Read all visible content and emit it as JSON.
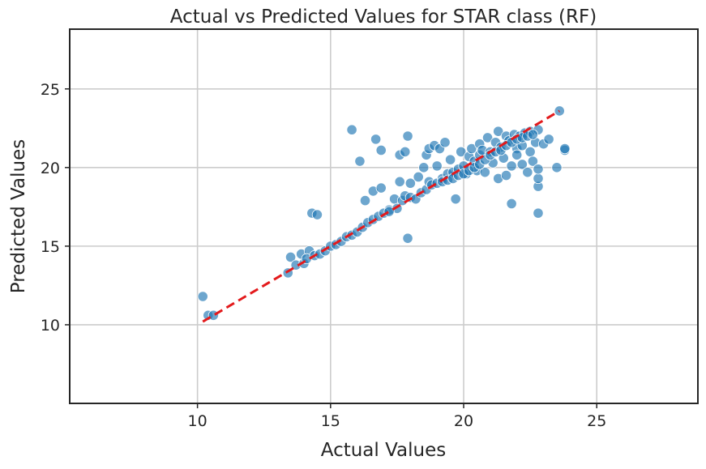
{
  "chart_data": {
    "type": "scatter",
    "title": "Actual vs Predicted Values for STAR class (RF)",
    "xlabel": "Actual Values",
    "ylabel": "Predicted Values",
    "xlim": [
      5.2,
      28.8
    ],
    "ylim": [
      5.0,
      28.8
    ],
    "x_ticks": [
      10,
      15,
      20,
      25
    ],
    "y_ticks": [
      10,
      15,
      20,
      25
    ],
    "x_tick_labels": [
      "10",
      "15",
      "20",
      "25"
    ],
    "y_tick_labels": [
      "10",
      "15",
      "20",
      "25"
    ],
    "grid": true,
    "legend": "none",
    "colors": {
      "points": "#1f77b4",
      "reference_line": "#e31a1c",
      "grid": "#cccccc",
      "frame": "#262626"
    },
    "reference_line": {
      "style": "dashed",
      "x": [
        10.2,
        23.6
      ],
      "y": [
        10.2,
        23.6
      ]
    },
    "series": [
      {
        "points": [
          [
            10.2,
            11.8
          ],
          [
            10.4,
            10.6
          ],
          [
            10.6,
            10.6
          ],
          [
            13.4,
            13.3
          ],
          [
            13.5,
            14.3
          ],
          [
            13.7,
            13.8
          ],
          [
            13.9,
            14.5
          ],
          [
            14.0,
            13.9
          ],
          [
            14.2,
            14.7
          ],
          [
            14.3,
            17.1
          ],
          [
            14.5,
            17.0
          ],
          [
            14.1,
            14.2
          ],
          [
            14.4,
            14.4
          ],
          [
            14.6,
            14.5
          ],
          [
            14.8,
            14.7
          ],
          [
            15.0,
            15.0
          ],
          [
            15.2,
            15.1
          ],
          [
            15.4,
            15.3
          ],
          [
            15.6,
            15.6
          ],
          [
            15.8,
            15.7
          ],
          [
            16.0,
            15.9
          ],
          [
            15.8,
            22.4
          ],
          [
            16.1,
            20.4
          ],
          [
            16.3,
            17.9
          ],
          [
            16.6,
            18.5
          ],
          [
            16.7,
            21.8
          ],
          [
            16.9,
            18.7
          ],
          [
            16.9,
            21.1
          ],
          [
            17.2,
            17.3
          ],
          [
            17.4,
            18.0
          ],
          [
            17.6,
            19.1
          ],
          [
            17.6,
            20.8
          ],
          [
            17.9,
            22.0
          ],
          [
            17.8,
            21.0
          ],
          [
            17.9,
            15.5
          ],
          [
            17.5,
            17.4
          ],
          [
            17.7,
            17.9
          ],
          [
            17.8,
            18.2
          ],
          [
            16.2,
            16.2
          ],
          [
            16.4,
            16.5
          ],
          [
            16.6,
            16.7
          ],
          [
            16.8,
            16.9
          ],
          [
            17.0,
            17.1
          ],
          [
            17.2,
            17.2
          ],
          [
            18.0,
            18.1
          ],
          [
            18.0,
            19.0
          ],
          [
            18.2,
            18.0
          ],
          [
            18.3,
            19.4
          ],
          [
            18.4,
            18.4
          ],
          [
            18.5,
            20.0
          ],
          [
            18.6,
            18.6
          ],
          [
            18.6,
            20.8
          ],
          [
            18.7,
            19.1
          ],
          [
            18.7,
            21.2
          ],
          [
            18.8,
            18.9
          ],
          [
            18.9,
            21.4
          ],
          [
            19.0,
            19.0
          ],
          [
            19.0,
            20.1
          ],
          [
            19.1,
            21.2
          ],
          [
            19.2,
            19.3
          ],
          [
            19.3,
            21.6
          ],
          [
            19.4,
            19.6
          ],
          [
            19.5,
            20.5
          ],
          [
            19.6,
            19.7
          ],
          [
            19.7,
            18.0
          ],
          [
            19.8,
            19.9
          ],
          [
            19.9,
            21.0
          ],
          [
            20.0,
            20.1
          ],
          [
            20.1,
            19.6
          ],
          [
            20.2,
            20.7
          ],
          [
            20.3,
            21.2
          ],
          [
            20.4,
            20.4
          ],
          [
            20.5,
            19.8
          ],
          [
            20.6,
            21.5
          ],
          [
            20.6,
            20.8
          ],
          [
            20.7,
            21.1
          ],
          [
            20.8,
            19.7
          ],
          [
            20.9,
            21.9
          ],
          [
            21.0,
            21.0
          ],
          [
            21.1,
            20.3
          ],
          [
            21.2,
            21.6
          ],
          [
            21.3,
            19.3
          ],
          [
            21.3,
            22.3
          ],
          [
            21.4,
            21.3
          ],
          [
            21.5,
            20.6
          ],
          [
            21.6,
            19.5
          ],
          [
            21.6,
            22.0
          ],
          [
            21.7,
            21.7
          ],
          [
            21.8,
            17.7
          ],
          [
            21.8,
            20.1
          ],
          [
            21.9,
            22.1
          ],
          [
            22.0,
            21.2
          ],
          [
            22.0,
            20.8
          ],
          [
            22.1,
            22.0
          ],
          [
            22.2,
            20.2
          ],
          [
            22.2,
            21.4
          ],
          [
            22.3,
            22.2
          ],
          [
            22.4,
            19.7
          ],
          [
            22.5,
            21.0
          ],
          [
            22.5,
            22.3
          ],
          [
            22.6,
            20.4
          ],
          [
            22.7,
            21.6
          ],
          [
            22.8,
            22.4
          ],
          [
            22.8,
            17.1
          ],
          [
            22.8,
            18.8
          ],
          [
            22.8,
            19.3
          ],
          [
            22.8,
            19.9
          ],
          [
            23.0,
            21.5
          ],
          [
            23.2,
            21.8
          ],
          [
            23.5,
            20.0
          ],
          [
            23.6,
            23.6
          ],
          [
            23.8,
            21.1
          ],
          [
            23.8,
            21.2
          ],
          [
            19.2,
            19.1
          ],
          [
            19.4,
            19.2
          ],
          [
            19.6,
            19.3
          ],
          [
            19.8,
            19.5
          ],
          [
            20.0,
            19.6
          ],
          [
            20.2,
            19.8
          ],
          [
            20.4,
            20.0
          ],
          [
            20.6,
            20.2
          ],
          [
            20.8,
            20.5
          ],
          [
            21.0,
            20.8
          ],
          [
            21.2,
            21.0
          ],
          [
            21.4,
            21.1
          ],
          [
            21.6,
            21.4
          ],
          [
            21.8,
            21.6
          ],
          [
            22.0,
            21.8
          ],
          [
            22.2,
            21.9
          ],
          [
            22.4,
            22.0
          ],
          [
            22.6,
            22.1
          ]
        ]
      }
    ]
  }
}
